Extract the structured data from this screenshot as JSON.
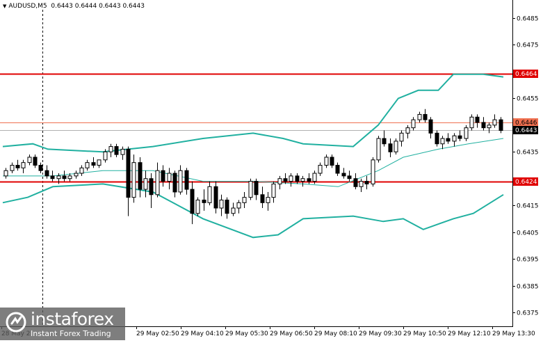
{
  "title": {
    "symbol": "AUDUSD,M5",
    "ohlc": "0.6443 0.6444 0.6443 0.6443"
  },
  "price_axis": {
    "ticks": [
      "0.6485",
      "0.6475",
      "0.6455",
      "0.6435",
      "0.6415",
      "0.6405",
      "0.6395",
      "0.6385",
      "0.6375"
    ],
    "tick_values": [
      0.6485,
      0.6475,
      0.6455,
      0.6435,
      0.6415,
      0.6405,
      0.6395,
      0.6385,
      0.6375
    ],
    "tags": [
      {
        "label": "0.6464",
        "value": 0.64643,
        "color": "#e00000",
        "text_color": "#ffffff"
      },
      {
        "label": "0.6446",
        "value": 0.64461,
        "color": "#f07050",
        "text_color": "#000000"
      },
      {
        "label": "0.6443",
        "value": 0.64432,
        "color": "#000000",
        "text_color": "#ffffff"
      },
      {
        "label": "0.6424",
        "value": 0.64239,
        "color": "#e00000",
        "text_color": "#ffffff"
      }
    ]
  },
  "time_axis": {
    "labels": [
      "28 May 2",
      "29 May 02:50",
      "29 May 04:10",
      "29 May 05:30",
      "29 May 06:50",
      "29 May 08:10",
      "29 May 09:30",
      "29 May 10:50",
      "29 May 12:10",
      "29 May 13:30"
    ]
  },
  "levels": [
    {
      "name": "resistance",
      "value": 0.64643,
      "color": "#e00000"
    },
    {
      "name": "support",
      "value": 0.64239,
      "color": "#e00000"
    },
    {
      "name": "level-orange",
      "value": 0.64461,
      "color": "#f07050"
    },
    {
      "name": "current-bid",
      "value": 0.64432,
      "color": "#b0b0b0"
    }
  ],
  "chart_data": {
    "type": "candlestick",
    "symbol": "AUDUSD,M5",
    "ylim": [
      0.637,
      0.649
    ],
    "grid": false,
    "colors": {
      "candle": "#000000",
      "bollinger": "#20b0a0",
      "ma": "#20b0a0"
    },
    "candles": [
      [
        0.6426,
        0.6429,
        0.6425,
        0.6428
      ],
      [
        0.6428,
        0.6431,
        0.6427,
        0.643
      ],
      [
        0.643,
        0.6432,
        0.6428,
        0.6429
      ],
      [
        0.6429,
        0.6432,
        0.6427,
        0.6431
      ],
      [
        0.6431,
        0.6434,
        0.643,
        0.6433
      ],
      [
        0.6433,
        0.6434,
        0.6429,
        0.643
      ],
      [
        0.643,
        0.6431,
        0.6427,
        0.6428
      ],
      [
        0.6428,
        0.643,
        0.6425,
        0.6426
      ],
      [
        0.6426,
        0.6428,
        0.6424,
        0.6425
      ],
      [
        0.6425,
        0.6427,
        0.6423,
        0.6426
      ],
      [
        0.6426,
        0.6428,
        0.6424,
        0.6425
      ],
      [
        0.6425,
        0.6427,
        0.6424,
        0.6426
      ],
      [
        0.6426,
        0.6428,
        0.6425,
        0.6427
      ],
      [
        0.6427,
        0.643,
        0.6426,
        0.6429
      ],
      [
        0.6429,
        0.6432,
        0.6428,
        0.6431
      ],
      [
        0.6431,
        0.6433,
        0.6429,
        0.643
      ],
      [
        0.643,
        0.6432,
        0.6429,
        0.6432
      ],
      [
        0.6432,
        0.6436,
        0.6431,
        0.6435
      ],
      [
        0.6435,
        0.6438,
        0.6433,
        0.6437
      ],
      [
        0.6437,
        0.6438,
        0.6433,
        0.6434
      ],
      [
        0.6434,
        0.6437,
        0.6432,
        0.6436
      ],
      [
        0.6436,
        0.6437,
        0.6411,
        0.6418
      ],
      [
        0.6418,
        0.6434,
        0.6416,
        0.6431
      ],
      [
        0.6431,
        0.6433,
        0.6418,
        0.6421
      ],
      [
        0.6421,
        0.6428,
        0.6418,
        0.6425
      ],
      [
        0.6425,
        0.6427,
        0.6414,
        0.6419
      ],
      [
        0.6419,
        0.6431,
        0.6418,
        0.6428
      ],
      [
        0.6428,
        0.643,
        0.6422,
        0.6424
      ],
      [
        0.6424,
        0.6429,
        0.6421,
        0.6427
      ],
      [
        0.6427,
        0.6428,
        0.6418,
        0.642
      ],
      [
        0.642,
        0.643,
        0.6419,
        0.6428
      ],
      [
        0.6428,
        0.6429,
        0.6419,
        0.6421
      ],
      [
        0.6421,
        0.6424,
        0.6408,
        0.6412
      ],
      [
        0.6412,
        0.6418,
        0.6411,
        0.6417
      ],
      [
        0.6417,
        0.6421,
        0.6413,
        0.6416
      ],
      [
        0.6416,
        0.6424,
        0.6415,
        0.6422
      ],
      [
        0.6422,
        0.6424,
        0.6412,
        0.6414
      ],
      [
        0.6414,
        0.6419,
        0.6411,
        0.6417
      ],
      [
        0.6417,
        0.6418,
        0.641,
        0.6412
      ],
      [
        0.6412,
        0.6416,
        0.6411,
        0.6414
      ],
      [
        0.6414,
        0.6417,
        0.6412,
        0.6416
      ],
      [
        0.6416,
        0.642,
        0.6414,
        0.6418
      ],
      [
        0.6418,
        0.6425,
        0.6417,
        0.6424
      ],
      [
        0.6424,
        0.6425,
        0.6417,
        0.6419
      ],
      [
        0.6419,
        0.6422,
        0.6414,
        0.6416
      ],
      [
        0.6416,
        0.642,
        0.6413,
        0.6418
      ],
      [
        0.6418,
        0.6424,
        0.6416,
        0.6423
      ],
      [
        0.6423,
        0.6426,
        0.6421,
        0.6425
      ],
      [
        0.6425,
        0.6427,
        0.6423,
        0.6424
      ],
      [
        0.6424,
        0.6427,
        0.6422,
        0.6426
      ],
      [
        0.6426,
        0.6427,
        0.6423,
        0.6424
      ],
      [
        0.6424,
        0.6426,
        0.6422,
        0.6425
      ],
      [
        0.6425,
        0.6427,
        0.6423,
        0.6424
      ],
      [
        0.6424,
        0.6428,
        0.6423,
        0.6427
      ],
      [
        0.6427,
        0.6431,
        0.6426,
        0.643
      ],
      [
        0.643,
        0.6434,
        0.6429,
        0.6433
      ],
      [
        0.6433,
        0.6434,
        0.6429,
        0.643
      ],
      [
        0.643,
        0.6431,
        0.6426,
        0.6427
      ],
      [
        0.6427,
        0.6429,
        0.6425,
        0.6426
      ],
      [
        0.6426,
        0.6428,
        0.6424,
        0.6425
      ],
      [
        0.6425,
        0.6427,
        0.6421,
        0.6422
      ],
      [
        0.6422,
        0.6425,
        0.642,
        0.6424
      ],
      [
        0.6424,
        0.6426,
        0.6421,
        0.6423
      ],
      [
        0.6423,
        0.6433,
        0.6422,
        0.6432
      ],
      [
        0.6432,
        0.6441,
        0.6431,
        0.644
      ],
      [
        0.644,
        0.6443,
        0.6437,
        0.6438
      ],
      [
        0.6438,
        0.644,
        0.6433,
        0.6435
      ],
      [
        0.6435,
        0.644,
        0.6434,
        0.6439
      ],
      [
        0.6439,
        0.6443,
        0.6437,
        0.6442
      ],
      [
        0.6442,
        0.6445,
        0.644,
        0.6444
      ],
      [
        0.6444,
        0.6448,
        0.6443,
        0.6447
      ],
      [
        0.6447,
        0.645,
        0.6446,
        0.6449
      ],
      [
        0.6449,
        0.6451,
        0.6446,
        0.6447
      ],
      [
        0.6447,
        0.6448,
        0.644,
        0.6442
      ],
      [
        0.6442,
        0.6443,
        0.6437,
        0.6438
      ],
      [
        0.6438,
        0.6441,
        0.6436,
        0.644
      ],
      [
        0.644,
        0.6442,
        0.6438,
        0.6439
      ],
      [
        0.6439,
        0.6442,
        0.6437,
        0.6441
      ],
      [
        0.6441,
        0.6443,
        0.6439,
        0.644
      ],
      [
        0.644,
        0.6445,
        0.6439,
        0.6444
      ],
      [
        0.6444,
        0.6449,
        0.6443,
        0.6448
      ],
      [
        0.6448,
        0.6449,
        0.6444,
        0.6446
      ],
      [
        0.6446,
        0.6448,
        0.6443,
        0.6444
      ],
      [
        0.6444,
        0.6446,
        0.6442,
        0.6445
      ],
      [
        0.6445,
        0.6449,
        0.6444,
        0.6447
      ],
      [
        0.6447,
        0.6448,
        0.6442,
        0.6443
      ]
    ],
    "bollinger_upper": [
      [
        0,
        0.6437
      ],
      [
        0.06,
        0.6438
      ],
      [
        0.09,
        0.6436
      ],
      [
        0.2,
        0.6435
      ],
      [
        0.3,
        0.6437
      ],
      [
        0.4,
        0.644
      ],
      [
        0.5,
        0.6442
      ],
      [
        0.56,
        0.644
      ],
      [
        0.6,
        0.6438
      ],
      [
        0.7,
        0.6437
      ],
      [
        0.75,
        0.6445
      ],
      [
        0.79,
        0.6455
      ],
      [
        0.83,
        0.6458
      ],
      [
        0.87,
        0.6458
      ],
      [
        0.9,
        0.6464
      ],
      [
        0.96,
        0.6464
      ],
      [
        1,
        0.6463
      ]
    ],
    "bollinger_lower": [
      [
        0,
        0.6416
      ],
      [
        0.05,
        0.6418
      ],
      [
        0.1,
        0.6422
      ],
      [
        0.2,
        0.6423
      ],
      [
        0.3,
        0.642
      ],
      [
        0.4,
        0.641
      ],
      [
        0.5,
        0.6403
      ],
      [
        0.55,
        0.6404
      ],
      [
        0.6,
        0.641
      ],
      [
        0.7,
        0.6411
      ],
      [
        0.76,
        0.6409
      ],
      [
        0.8,
        0.641
      ],
      [
        0.84,
        0.6406
      ],
      [
        0.9,
        0.641
      ],
      [
        0.94,
        0.6412
      ],
      [
        1,
        0.6419
      ]
    ],
    "moving_average": [
      [
        0,
        0.6426
      ],
      [
        0.1,
        0.6426
      ],
      [
        0.2,
        0.6428
      ],
      [
        0.3,
        0.6428
      ],
      [
        0.4,
        0.6424
      ],
      [
        0.5,
        0.6424
      ],
      [
        0.6,
        0.6423
      ],
      [
        0.67,
        0.6422
      ],
      [
        0.75,
        0.6428
      ],
      [
        0.8,
        0.6433
      ],
      [
        0.87,
        0.6436
      ],
      [
        0.93,
        0.6438
      ],
      [
        1,
        0.644
      ]
    ]
  },
  "watermark": {
    "brand": "instaforex",
    "subtitle": "Instant Forex Trading"
  }
}
